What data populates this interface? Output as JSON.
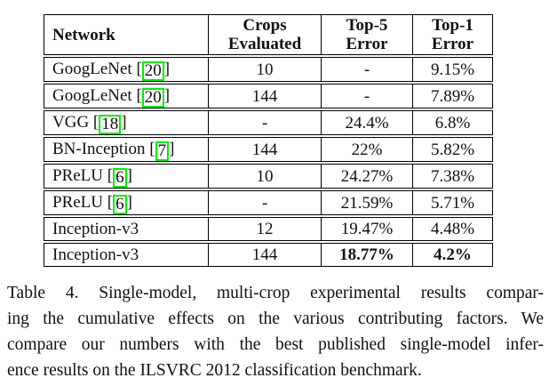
{
  "page": {
    "background": "#ffffff",
    "text_color": "#111111",
    "citation_box_color": "#00ee00",
    "border_color": "#000000"
  },
  "table": {
    "columns": [
      {
        "id": "network",
        "label_lines": [
          "Network"
        ],
        "align": "left"
      },
      {
        "id": "crops",
        "label_lines": [
          "Crops",
          "Evaluated"
        ],
        "align": "center"
      },
      {
        "id": "top5",
        "label_lines": [
          "Top-5",
          "Error"
        ],
        "align": "center"
      },
      {
        "id": "top1",
        "label_lines": [
          "Top-1",
          "Error"
        ],
        "align": "center"
      }
    ],
    "rows": [
      {
        "network": "GoogLeNet",
        "citation": "20",
        "crops": "10",
        "top5": "-",
        "top1": "9.15%",
        "values_bold": false
      },
      {
        "network": "GoogLeNet",
        "citation": "20",
        "crops": "144",
        "top5": "-",
        "top1": "7.89%",
        "values_bold": false
      },
      {
        "network": "VGG",
        "citation": "18",
        "crops": "-",
        "top5": "24.4%",
        "top1": "6.8%",
        "values_bold": false
      },
      {
        "network": "BN-Inception",
        "citation": "7",
        "crops": "144",
        "top5": "22%",
        "top1": "5.82%",
        "values_bold": false
      },
      {
        "network": "PReLU",
        "citation": "6",
        "crops": "10",
        "top5": "24.27%",
        "top1": "7.38%",
        "values_bold": false
      },
      {
        "network": "PReLU",
        "citation": "6",
        "crops": "-",
        "top5": "21.59%",
        "top1": "5.71%",
        "values_bold": false
      },
      {
        "network": "Inception-v3",
        "citation": null,
        "crops": "12",
        "top5": "19.47%",
        "top1": "4.48%",
        "values_bold": false
      },
      {
        "network": "Inception-v3",
        "citation": null,
        "crops": "144",
        "top5": "18.77%",
        "top1": "4.2%",
        "values_bold": true
      }
    ]
  },
  "caption": {
    "lines": [
      "Table 4. Single-model, multi-crop experimental results compar-",
      "ing the cumulative effects on the various contributing factors. We",
      "compare our numbers with the best published single-model infer-",
      "ence results on the ILSVRC 2012 classification benchmark."
    ]
  }
}
